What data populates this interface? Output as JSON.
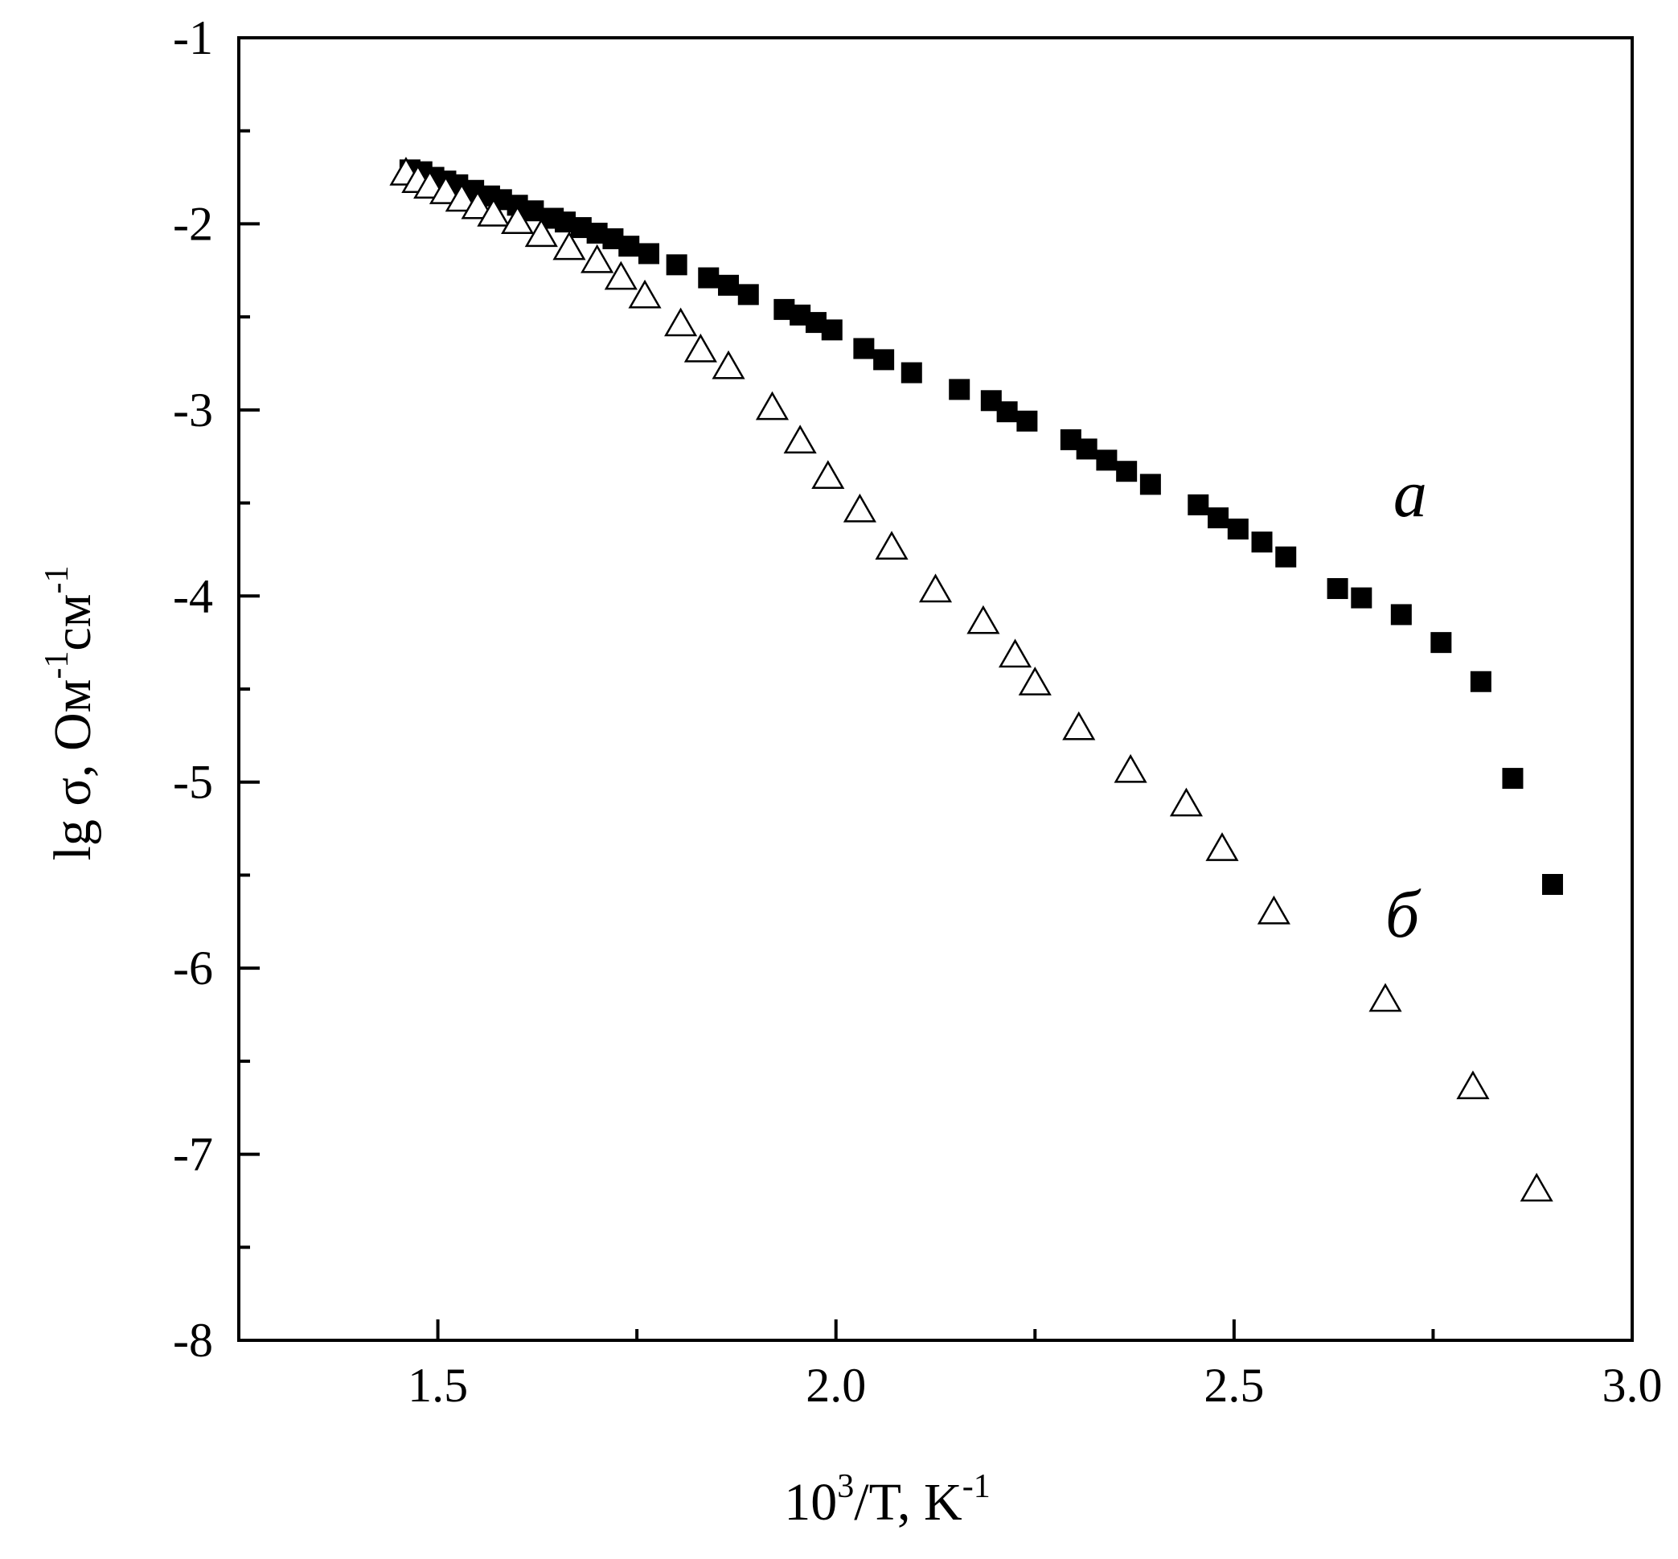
{
  "chart_data": {
    "type": "scatter",
    "xlabel": {
      "base": "10",
      "sup": "3",
      "rest": "/T, K",
      "unit_sup": "-1"
    },
    "ylabel": {
      "main": "lg σ, Ом",
      "sup1": "-1",
      "mid": "см",
      "sup2": "-1"
    },
    "xlim": [
      1.25,
      3.0
    ],
    "ylim": [
      -8,
      -1
    ],
    "x_ticks_major": [
      1.5,
      2.0,
      2.5,
      3.0
    ],
    "x_tick_labels": [
      "1.5",
      "2.0",
      "2.5",
      "3.0"
    ],
    "x_ticks_minor": [
      1.25,
      1.75,
      2.25,
      2.75
    ],
    "y_ticks_major": [
      -8,
      -7,
      -6,
      -5,
      -4,
      -3,
      -2,
      -1
    ],
    "y_tick_labels": [
      "-8",
      "-7",
      "-6",
      "-5",
      "-4",
      "-3",
      "-2",
      "-1"
    ],
    "y_ticks_minor": [
      -7.5,
      -6.5,
      -5.5,
      -4.5,
      -3.5,
      -2.5,
      -1.5
    ],
    "grid": false,
    "series": [
      {
        "name": "a",
        "marker": "filled-square",
        "color": "#000000",
        "label_at": [
          2.7,
          -3.57
        ],
        "points": [
          [
            1.465,
            -1.71
          ],
          [
            1.48,
            -1.72
          ],
          [
            1.495,
            -1.75
          ],
          [
            1.51,
            -1.77
          ],
          [
            1.525,
            -1.79
          ],
          [
            1.545,
            -1.82
          ],
          [
            1.565,
            -1.85
          ],
          [
            1.58,
            -1.87
          ],
          [
            1.6,
            -1.9
          ],
          [
            1.62,
            -1.93
          ],
          [
            1.645,
            -1.97
          ],
          [
            1.66,
            -1.99
          ],
          [
            1.68,
            -2.02
          ],
          [
            1.7,
            -2.05
          ],
          [
            1.72,
            -2.08
          ],
          [
            1.74,
            -2.12
          ],
          [
            1.765,
            -2.16
          ],
          [
            1.8,
            -2.22
          ],
          [
            1.84,
            -2.29
          ],
          [
            1.865,
            -2.33
          ],
          [
            1.89,
            -2.38
          ],
          [
            1.935,
            -2.46
          ],
          [
            1.955,
            -2.49
          ],
          [
            1.975,
            -2.53
          ],
          [
            1.995,
            -2.57
          ],
          [
            2.035,
            -2.67
          ],
          [
            2.06,
            -2.73
          ],
          [
            2.095,
            -2.8
          ],
          [
            2.155,
            -2.89
          ],
          [
            2.195,
            -2.95
          ],
          [
            2.215,
            -3.01
          ],
          [
            2.24,
            -3.06
          ],
          [
            2.295,
            -3.16
          ],
          [
            2.315,
            -3.21
          ],
          [
            2.34,
            -3.27
          ],
          [
            2.365,
            -3.33
          ],
          [
            2.395,
            -3.4
          ],
          [
            2.455,
            -3.51
          ],
          [
            2.48,
            -3.58
          ],
          [
            2.505,
            -3.64
          ],
          [
            2.535,
            -3.71
          ],
          [
            2.565,
            -3.79
          ],
          [
            2.63,
            -3.96
          ],
          [
            2.66,
            -4.01
          ],
          [
            2.71,
            -4.1
          ],
          [
            2.76,
            -4.25
          ],
          [
            2.81,
            -4.46
          ],
          [
            2.85,
            -4.98
          ],
          [
            2.9,
            -5.55
          ]
        ]
      },
      {
        "name": "б",
        "marker": "open-triangle",
        "color": "#000000",
        "label_at": [
          2.69,
          -5.83
        ],
        "points": [
          [
            1.46,
            -1.73
          ],
          [
            1.475,
            -1.77
          ],
          [
            1.49,
            -1.8
          ],
          [
            1.51,
            -1.83
          ],
          [
            1.53,
            -1.87
          ],
          [
            1.55,
            -1.91
          ],
          [
            1.57,
            -1.95
          ],
          [
            1.6,
            -1.99
          ],
          [
            1.63,
            -2.06
          ],
          [
            1.665,
            -2.13
          ],
          [
            1.7,
            -2.2
          ],
          [
            1.73,
            -2.29
          ],
          [
            1.76,
            -2.39
          ],
          [
            1.805,
            -2.54
          ],
          [
            1.83,
            -2.68
          ],
          [
            1.865,
            -2.77
          ],
          [
            1.92,
            -2.99
          ],
          [
            1.955,
            -3.17
          ],
          [
            1.99,
            -3.36
          ],
          [
            2.03,
            -3.54
          ],
          [
            2.07,
            -3.74
          ],
          [
            2.125,
            -3.97
          ],
          [
            2.185,
            -4.14
          ],
          [
            2.225,
            -4.32
          ],
          [
            2.25,
            -4.47
          ],
          [
            2.305,
            -4.71
          ],
          [
            2.37,
            -4.94
          ],
          [
            2.44,
            -5.12
          ],
          [
            2.485,
            -5.36
          ],
          [
            2.55,
            -5.7
          ],
          [
            2.69,
            -6.17
          ],
          [
            2.8,
            -6.64
          ],
          [
            2.88,
            -7.19
          ]
        ]
      }
    ]
  }
}
